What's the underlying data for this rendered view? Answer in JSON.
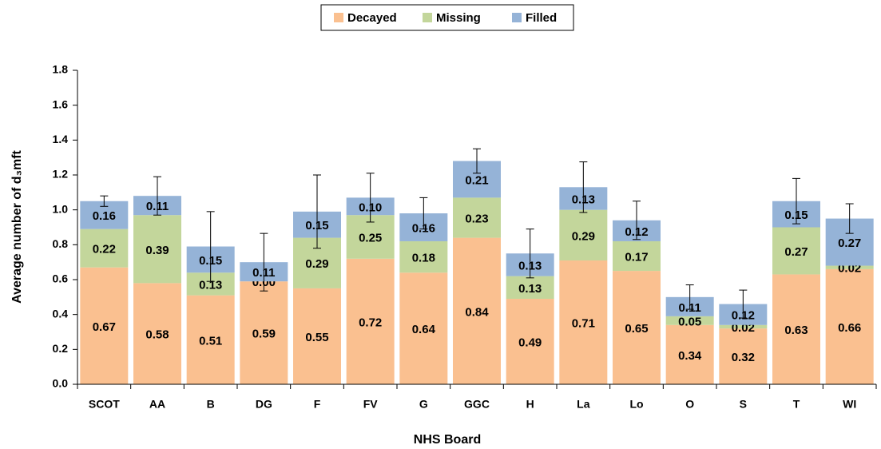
{
  "chart_data": {
    "type": "stacked_bar",
    "x_label": "NHS Board",
    "y_label": "Average number of d₃mft",
    "categories": [
      "SCOT",
      "AA",
      "B",
      "DG",
      "F",
      "FV",
      "G",
      "GGC",
      "H",
      "La",
      "Lo",
      "O",
      "S",
      "T",
      "WI"
    ],
    "series": [
      {
        "name": "Decayed",
        "color": "#fac090",
        "values": [
          0.67,
          0.58,
          0.51,
          0.59,
          0.55,
          0.72,
          0.64,
          0.84,
          0.49,
          0.71,
          0.65,
          0.34,
          0.32,
          0.63,
          0.66
        ],
        "value_labels": [
          "0.67",
          "0.58",
          "0.51",
          "0.59",
          "0.55",
          "0.72",
          "0.64",
          "0.84",
          "0.49",
          "0.71",
          "0.65",
          "0.34",
          "0.32",
          "0.63",
          "0.66"
        ]
      },
      {
        "name": "Missing",
        "color": "#c3d69b",
        "values": [
          0.22,
          0.39,
          0.13,
          0.0,
          0.29,
          0.25,
          0.18,
          0.23,
          0.13,
          0.29,
          0.17,
          0.05,
          0.02,
          0.27,
          0.02
        ],
        "value_labels": [
          "0.22",
          "0.39",
          "0.13",
          "0.00",
          "0.29",
          "0.25",
          "0.18",
          "0.23",
          "0.13",
          "0.29",
          "0.17",
          "0.05",
          "0.02",
          "0.27",
          "0.02"
        ]
      },
      {
        "name": "Filled",
        "color": "#95b3d7",
        "values": [
          0.16,
          0.11,
          0.15,
          0.11,
          0.15,
          0.1,
          0.16,
          0.21,
          0.13,
          0.13,
          0.12,
          0.11,
          0.12,
          0.15,
          0.27
        ],
        "value_labels": [
          "0.16",
          "0.11",
          "0.15",
          "0.11",
          "0.15",
          "0.10",
          "0.16",
          "0.21",
          "0.13",
          "0.13",
          "0.12",
          "0.11",
          "0.12",
          "0.15",
          "0.27"
        ]
      }
    ],
    "errors": [
      0.03,
      0.11,
      0.2,
      0.165,
      0.21,
      0.14,
      0.09,
      0.07,
      0.14,
      0.145,
      0.11,
      0.07,
      0.08,
      0.13,
      0.085
    ],
    "ylim": [
      0,
      1.8
    ],
    "yticks": [
      {
        "value": 0,
        "label": "0.0"
      },
      {
        "value": 0.2,
        "label": "0.2"
      },
      {
        "value": 0.4,
        "label": "0.4"
      },
      {
        "value": 0.6,
        "label": "0.6"
      },
      {
        "value": 0.8,
        "label": "0.8"
      },
      {
        "value": 1,
        "label": "1.0"
      },
      {
        "value": 1.2,
        "label": "1.2"
      },
      {
        "value": 1.4,
        "label": "1.4"
      },
      {
        "value": 1.6,
        "label": "1.6"
      },
      {
        "value": 1.8,
        "label": "1.8"
      }
    ],
    "grid": false,
    "legend": "top"
  }
}
